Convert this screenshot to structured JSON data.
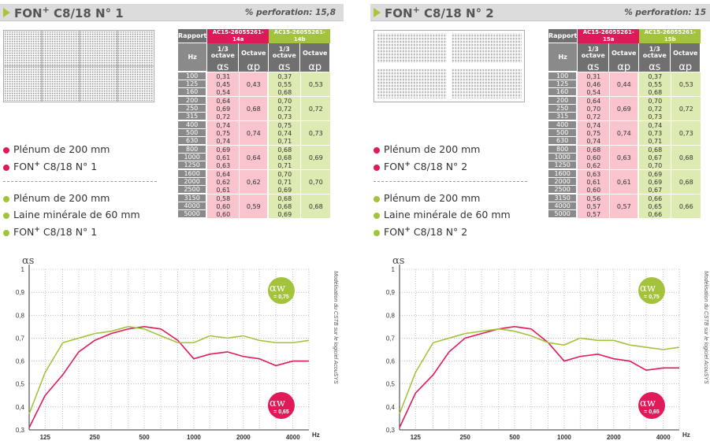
{
  "panels": [
    {
      "title_pre": "FON",
      "title_sup": "+",
      "title_post": " C8/18 N° 1",
      "perforation": "% perforation: 15,8",
      "legend_red": [
        "Plénum de 200 mm",
        "C8/18 N° 1"
      ],
      "legend_green": [
        "Plénum de 200 mm",
        "Laine minérale de 60 mm",
        "C8/18 N° 1"
      ],
      "fon_prefix": "FON",
      "fon_sup": "+",
      "table": {
        "rapport_label": "Rapport",
        "rapport_red": "AC15-26055261-14a",
        "rapport_green": "AC15-26055261-14b",
        "hz_label": "Hz",
        "third_octave": "1/3 octave",
        "octave": "Octave",
        "alpha_s": "αs",
        "alpha_p": "αp",
        "rows": [
          {
            "hz": "100",
            "r": "0,31",
            "g": "0,37"
          },
          {
            "hz": "125",
            "r": "0,45",
            "g": "0,55"
          },
          {
            "hz": "160",
            "r": "0,54",
            "g": "0,68"
          },
          {
            "hz": "200",
            "r": "0,64",
            "g": "0,70"
          },
          {
            "hz": "250",
            "r": "0,69",
            "g": "0,72"
          },
          {
            "hz": "315",
            "r": "0,72",
            "g": "0,73"
          },
          {
            "hz": "400",
            "r": "0,74",
            "g": "0,75"
          },
          {
            "hz": "500",
            "r": "0,75",
            "g": "0,74"
          },
          {
            "hz": "630",
            "r": "0,74",
            "g": "0,71"
          },
          {
            "hz": "800",
            "r": "0,69",
            "g": "0,68"
          },
          {
            "hz": "1000",
            "r": "0,61",
            "g": "0,68"
          },
          {
            "hz": "1250",
            "r": "0,63",
            "g": "0,71"
          },
          {
            "hz": "1600",
            "r": "0,64",
            "g": "0,70"
          },
          {
            "hz": "2000",
            "r": "0,62",
            "g": "0,71"
          },
          {
            "hz": "2500",
            "r": "0,61",
            "g": "0,69"
          },
          {
            "hz": "3150",
            "r": "0,58",
            "g": "0,68"
          },
          {
            "hz": "4000",
            "r": "0,60",
            "g": "0,68"
          },
          {
            "hz": "5000",
            "r": "0,60",
            "g": "0,69"
          }
        ],
        "octave_red": [
          "0,43",
          "0,68",
          "0,74",
          "0,64",
          "0,62",
          "0,59"
        ],
        "octave_green": [
          "0,53",
          "0,72",
          "0,73",
          "0,69",
          "0,70",
          "0,68"
        ]
      },
      "chart": {
        "y_label": "αs",
        "aw_label": "αw",
        "aw_green": "= 0,75",
        "aw_red": "= 0,65",
        "side_note": "Modélisation du CSTB sur le logiciel AcouSYS",
        "x_unit": "Hz"
      }
    },
    {
      "title_pre": "FON",
      "title_sup": "+",
      "title_post": " C8/18 N° 2",
      "perforation": "% perforation: 15",
      "legend_red": [
        "Plénum de 200 mm",
        "C8/18 N° 2"
      ],
      "legend_green": [
        "Plénum de 200 mm",
        "Laine minérale de 60 mm",
        "C8/18 N° 2"
      ],
      "fon_prefix": "FON",
      "fon_sup": "+",
      "table": {
        "rapport_label": "Rapport",
        "rapport_red": "AC15-26055261-15a",
        "rapport_green": "AC15-26055261-15b",
        "hz_label": "Hz",
        "third_octave": "1/3 octave",
        "octave": "Octave",
        "alpha_s": "αs",
        "alpha_p": "αp",
        "rows": [
          {
            "hz": "100",
            "r": "0,31",
            "g": "0,37"
          },
          {
            "hz": "125",
            "r": "0,46",
            "g": "0,55"
          },
          {
            "hz": "160",
            "r": "0,54",
            "g": "0,68"
          },
          {
            "hz": "200",
            "r": "0,64",
            "g": "0,70"
          },
          {
            "hz": "250",
            "r": "0,70",
            "g": "0,72"
          },
          {
            "hz": "315",
            "r": "0,72",
            "g": "0,73"
          },
          {
            "hz": "400",
            "r": "0,74",
            "g": "0,74"
          },
          {
            "hz": "500",
            "r": "0,75",
            "g": "0,73"
          },
          {
            "hz": "630",
            "r": "0,74",
            "g": "0,71"
          },
          {
            "hz": "800",
            "r": "0,68",
            "g": "0,68"
          },
          {
            "hz": "1000",
            "r": "0,60",
            "g": "0,67"
          },
          {
            "hz": "1250",
            "r": "0,62",
            "g": "0,70"
          },
          {
            "hz": "1600",
            "r": "0,63",
            "g": "0,69"
          },
          {
            "hz": "2000",
            "r": "0,61",
            "g": "0,69"
          },
          {
            "hz": "2500",
            "r": "0,60",
            "g": "0,67"
          },
          {
            "hz": "3150",
            "r": "0,56",
            "g": "0,66"
          },
          {
            "hz": "4000",
            "r": "0,57",
            "g": "0,65"
          },
          {
            "hz": "5000",
            "r": "0,57",
            "g": "0,66"
          }
        ],
        "octave_red": [
          "0,44",
          "0,69",
          "0,74",
          "0,63",
          "0,61",
          "0,57"
        ],
        "octave_green": [
          "0,53",
          "0,72",
          "0,73",
          "0,68",
          "0,68",
          "0,66"
        ]
      },
      "chart": {
        "y_label": "αs",
        "aw_label": "αw",
        "aw_green": "= 0,75",
        "aw_red": "= 0,65",
        "side_note": "Modélisation du CSTB sur le logiciel AcouSYS",
        "x_unit": "Hz"
      }
    }
  ],
  "colors": {
    "red": "#e01a59",
    "green": "#a3c33c"
  },
  "chart_data": [
    {
      "type": "line",
      "x": [
        100,
        125,
        160,
        200,
        250,
        315,
        400,
        500,
        630,
        800,
        1000,
        1250,
        1600,
        2000,
        2500,
        3150,
        4000,
        5000
      ],
      "x_tick_labels": [
        "125",
        "250",
        "500",
        "1000",
        "2000",
        "4000"
      ],
      "y_tick_labels": [
        "0,3",
        "0,4",
        "0,5",
        "0,6",
        "0,7",
        "0,8",
        "0,9",
        "1"
      ],
      "ylim": [
        0.3,
        1.0
      ],
      "series": [
        {
          "name": "Plénum de 200 mm - FON+ C8/18 N° 1",
          "color": "#e01a59",
          "values": [
            0.31,
            0.45,
            0.54,
            0.64,
            0.69,
            0.72,
            0.74,
            0.75,
            0.74,
            0.69,
            0.61,
            0.63,
            0.64,
            0.62,
            0.61,
            0.58,
            0.6,
            0.6
          ]
        },
        {
          "name": "Plénum de 200 mm - Laine minérale de 60 mm - FON+ C8/18 N° 1",
          "color": "#a3c33c",
          "values": [
            0.37,
            0.55,
            0.68,
            0.7,
            0.72,
            0.73,
            0.75,
            0.74,
            0.71,
            0.68,
            0.68,
            0.71,
            0.7,
            0.71,
            0.69,
            0.68,
            0.68,
            0.69
          ]
        }
      ]
    },
    {
      "type": "line",
      "x": [
        100,
        125,
        160,
        200,
        250,
        315,
        400,
        500,
        630,
        800,
        1000,
        1250,
        1600,
        2000,
        2500,
        3150,
        4000,
        5000
      ],
      "x_tick_labels": [
        "125",
        "250",
        "500",
        "1000",
        "2000",
        "4000"
      ],
      "y_tick_labels": [
        "0,3",
        "0,4",
        "0,5",
        "0,6",
        "0,7",
        "0,8",
        "0,9",
        "1"
      ],
      "ylim": [
        0.3,
        1.0
      ],
      "series": [
        {
          "name": "Plénum de 200 mm - FON+ C8/18 N° 2",
          "color": "#e01a59",
          "values": [
            0.31,
            0.46,
            0.54,
            0.64,
            0.7,
            0.72,
            0.74,
            0.75,
            0.74,
            0.68,
            0.6,
            0.62,
            0.63,
            0.61,
            0.6,
            0.56,
            0.57,
            0.57
          ]
        },
        {
          "name": "Plénum de 200 mm - Laine minérale de 60 mm - FON+ C8/18 N° 2",
          "color": "#a3c33c",
          "values": [
            0.37,
            0.55,
            0.68,
            0.7,
            0.72,
            0.73,
            0.74,
            0.73,
            0.71,
            0.68,
            0.67,
            0.7,
            0.69,
            0.69,
            0.67,
            0.66,
            0.65,
            0.66
          ]
        }
      ]
    }
  ]
}
